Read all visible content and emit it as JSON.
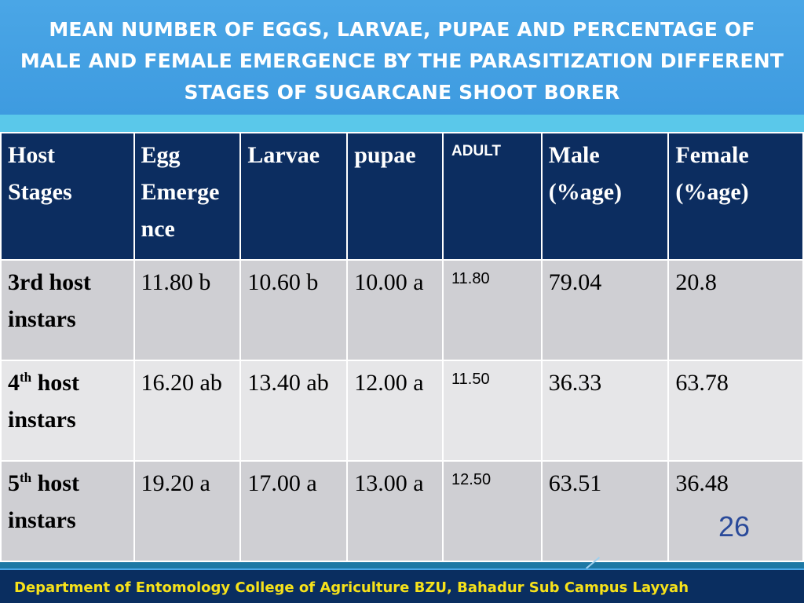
{
  "slide": {
    "title": "MEAN NUMBER OF EGGS, LARVAE, PUPAE AND PERCENTAGE OF MALE AND FEMALE EMERGENCE BY THE PARASITIZATION DIFFERENT STAGES OF SUGARCANE SHOOT BORER",
    "page_number": "26",
    "footer": "Department of Entomology  College of Agriculture BZU, Bahadur Sub Campus Layyah",
    "colors": {
      "title_band": "#3e9be0",
      "header_row": "#0c2d60",
      "row_dark": "#cfcfd3",
      "row_light": "#e6e6e8",
      "footer_text": "#f7e21a",
      "footer_bar": "#0a2e60"
    }
  },
  "table": {
    "headers": {
      "host_line1": "Host",
      "host_line2": "Stages",
      "egg_line1": "Egg",
      "egg_line2": "Emerge",
      "egg_line3": "nce",
      "larvae": "Larvae",
      "pupae": "pupae",
      "adult": "ADULT",
      "male_line1": "Male",
      "male_line2": "(%age)",
      "female_line1": "Female",
      "female_line2": "(%age)"
    },
    "rows": [
      {
        "host_a": "3rd host",
        "host_sup": "",
        "host_b": "",
        "host_line2": "instars",
        "egg": "11.80 b",
        "larvae": "10.60 b",
        "pupae": "10.00 a",
        "adult": "11.80",
        "male": "79.04",
        "female": "20.8"
      },
      {
        "host_a": "4",
        "host_sup": "th",
        "host_b": " host",
        "host_line2": "instars",
        "egg": "16.20 ab",
        "larvae": "13.40 ab",
        "pupae": "12.00 a",
        "adult": "11.50",
        "male": "36.33",
        "female": "63.78"
      },
      {
        "host_a": "5",
        "host_sup": "th",
        "host_b": " host",
        "host_line2": "instars",
        "egg": "19.20 a",
        "larvae": "17.00 a",
        "pupae": "13.00 a",
        "adult": "12.50",
        "male": "63.51",
        "female": "36.48"
      }
    ]
  }
}
